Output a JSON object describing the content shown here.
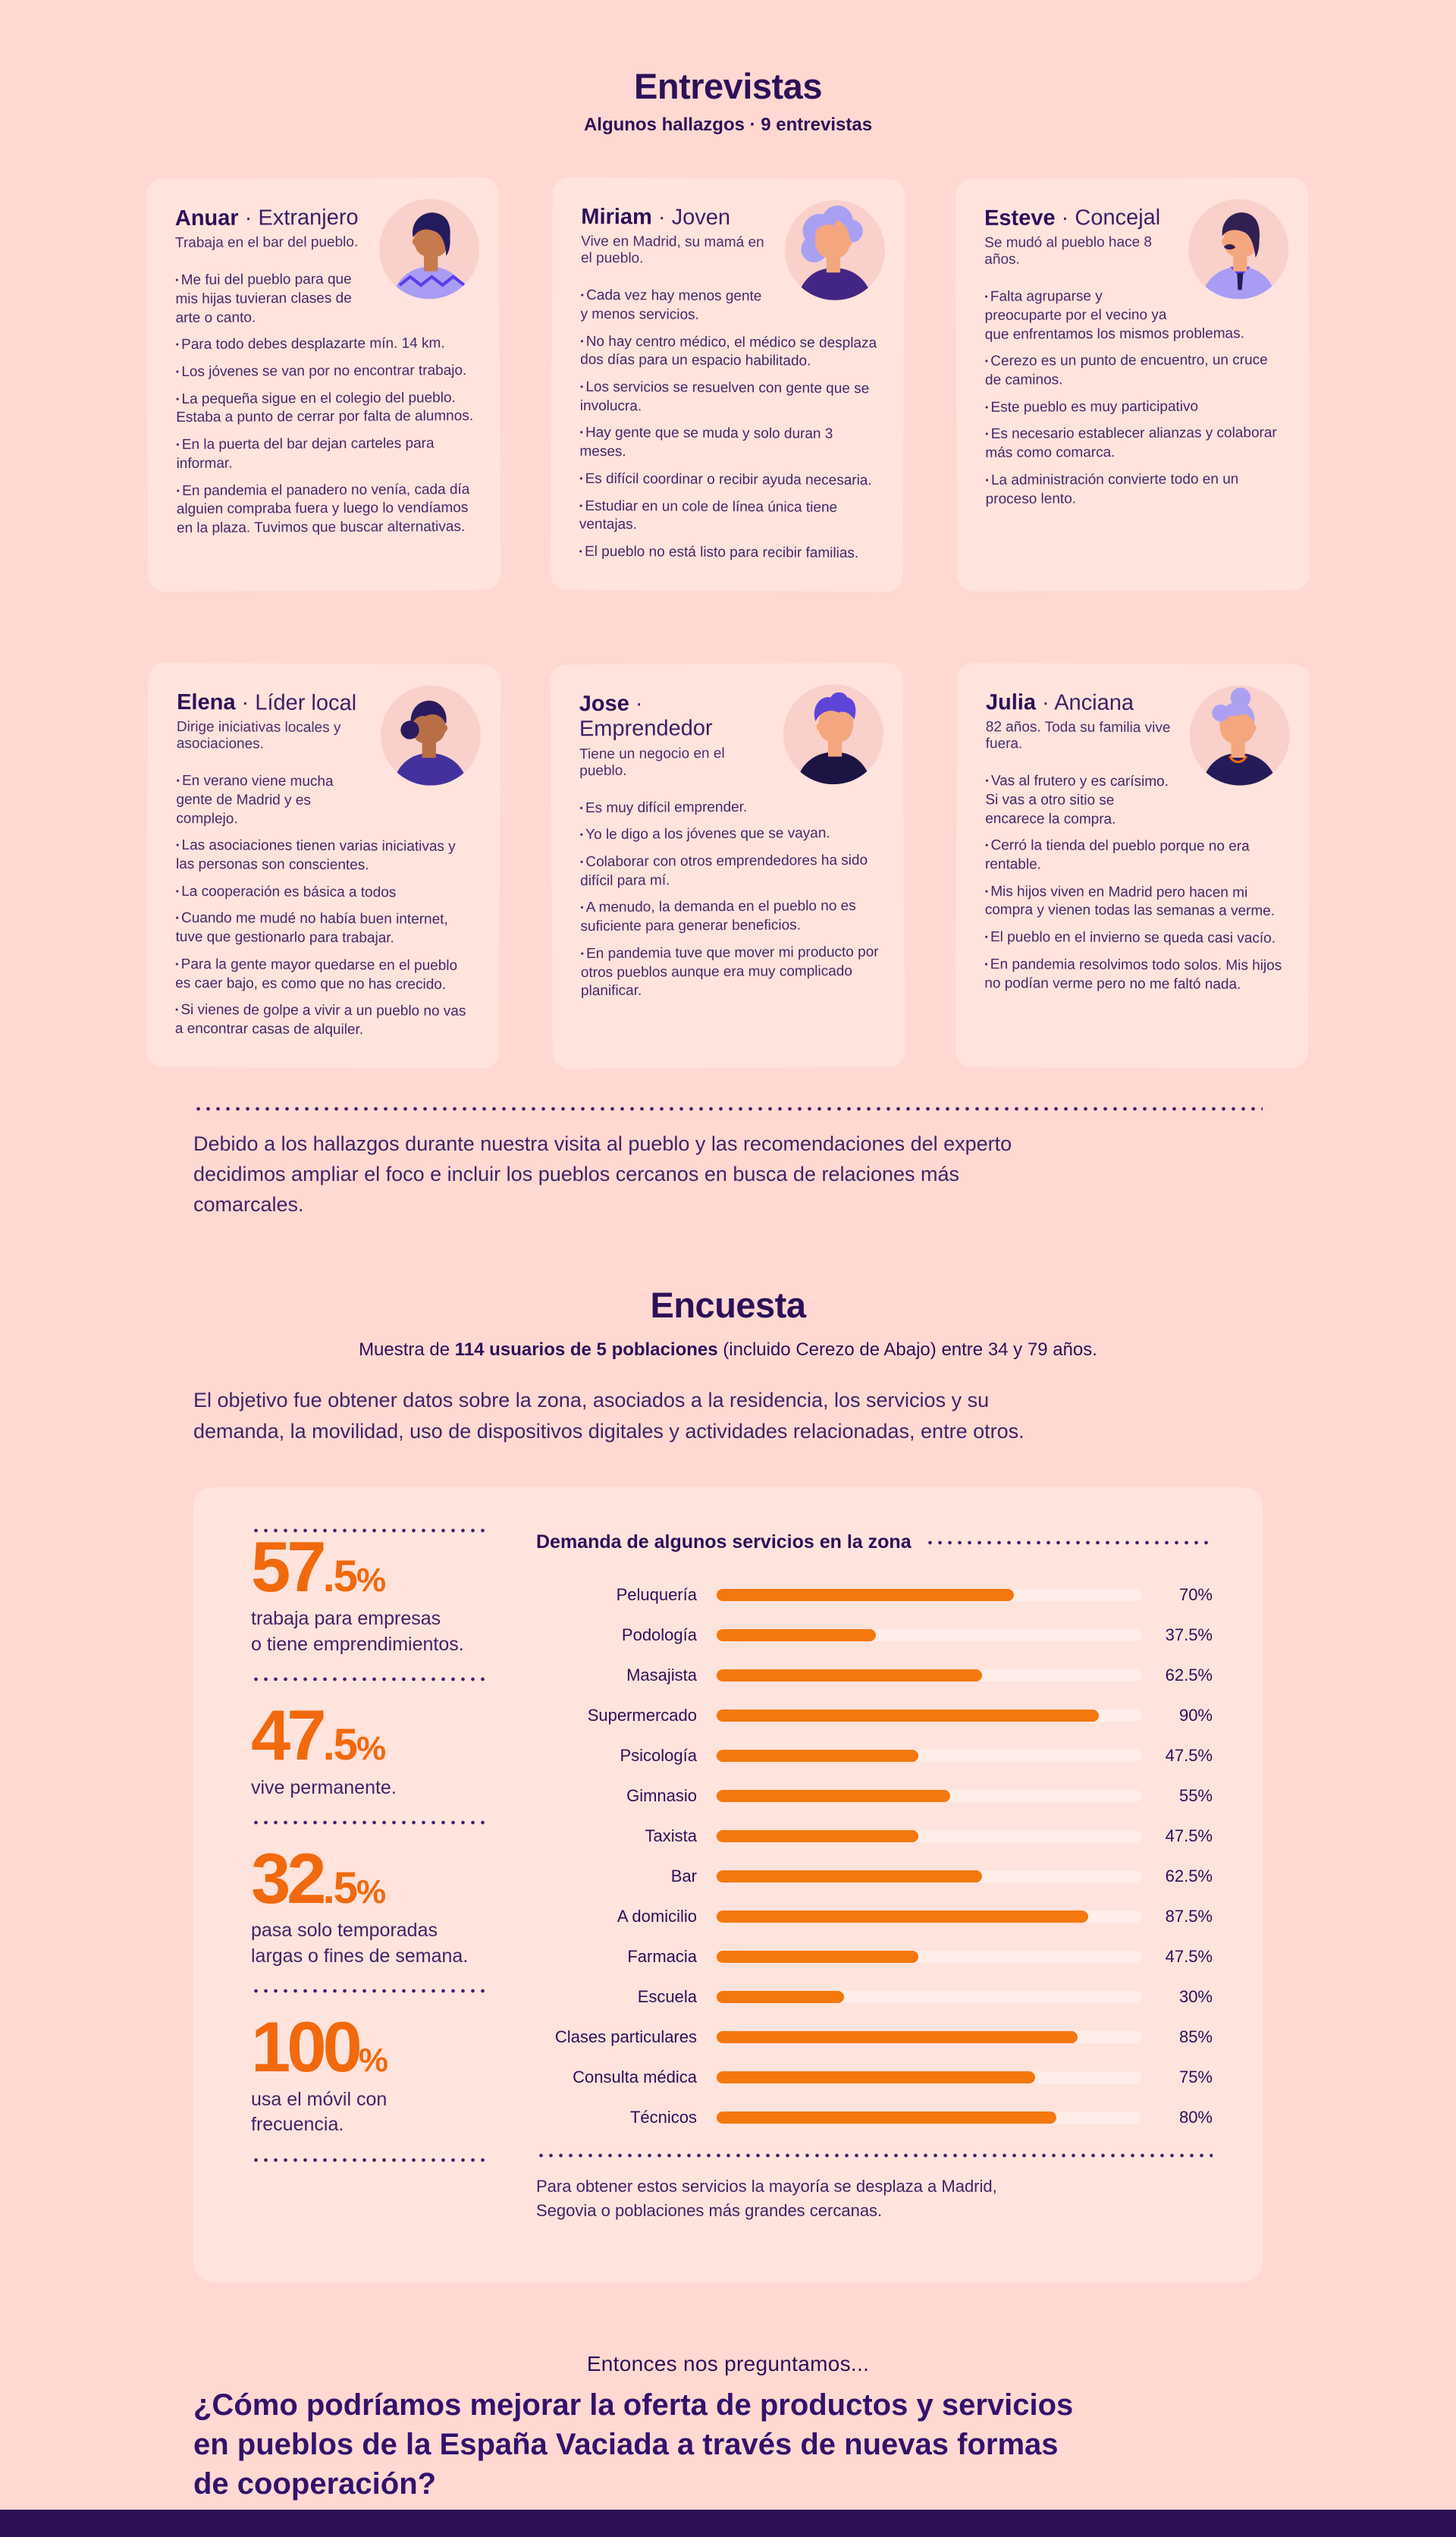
{
  "page": {
    "background": "#FFD8D2",
    "panel_background": "#FFE3DD",
    "card_background": "#FFE3DD",
    "ink": "#2D1158",
    "body_purple": "#452969",
    "accent_orange": "#F2690D",
    "footer_color": "#2B1056"
  },
  "entrevistas": {
    "title": "Entrevistas",
    "subtitle": "Algunos hallazgos · 9 entrevistas",
    "sep": "·",
    "people": [
      {
        "name": "Anuar",
        "role": "Extranjero",
        "desc": "Trabaja en el bar del pueblo.",
        "bullets": [
          "Me fui del pueblo para que mis hijas tuvieran clases de arte o canto.",
          "Para todo debes desplazarte mín. 14 km.",
          "Los jóvenes se van por no encontrar trabajo.",
          "La pequeña sigue en el colegio del pueblo. Estaba a punto de cerrar por falta de alumnos.",
          "En la puerta del bar dejan carteles para informar.",
          "En pandemia el panadero no venía, cada día alguien compraba fuera y luego lo vendíamos en la plaza. Tuvimos que buscar alternativas."
        ],
        "avatar": {
          "bg": "#F9D0CA",
          "hair": "#241B5E",
          "skin": "#C67A4E",
          "shirt": "#A89CF5",
          "accent": "#5B3BEA"
        }
      },
      {
        "name": "Miriam",
        "role": "Joven",
        "desc": "Vive en Madrid, su mamá en el pueblo.",
        "bullets": [
          "Cada vez hay menos gente y menos servicios.",
          "No hay centro médico, el médico se desplaza dos días para un espacio habilitado.",
          "Los servicios se resuelven con gente que se involucra.",
          "Hay gente que se muda y solo duran 3 meses.",
          "Es difícil coordinar o recibir ayuda necesaria.",
          "Estudiar en un cole de línea única tiene ventajas.",
          "El pueblo no está listo para recibir familias."
        ],
        "avatar": {
          "bg": "#F9D0CA",
          "hair": "#A99FF3",
          "skin": "#F4A77E",
          "shirt": "#432585",
          "accent": "#7C5CF0"
        }
      },
      {
        "name": "Esteve",
        "role": "Concejal",
        "desc": "Se mudó al pueblo hace 8 años.",
        "bullets": [
          "Falta agruparse y preocuparte por el vecino ya que enfrentamos los mismos problemas.",
          "Cerezo es un punto de encuentro, un cruce de caminos.",
          "Este pueblo es muy participativo",
          "Es necesario establecer alianzas y colaborar más como comarca.",
          "La administración convierte todo en un proceso lento."
        ],
        "avatar": {
          "bg": "#F9D0CA",
          "hair": "#312051",
          "skin": "#F4A77E",
          "shirt": "#A89CF5",
          "tie": "#241A56",
          "collar": "#5B46F5"
        }
      },
      {
        "name": "Elena",
        "role": "Líder local",
        "desc": "Dirige iniciativas locales y asociaciones.",
        "bullets": [
          "En verano viene mucha gente de Madrid y es complejo.",
          "Las asociaciones tienen varias iniciativas y las personas son conscientes.",
          "La cooperación es básica a todos",
          "Cuando me mudé no había buen internet, tuve que gestionarlo para trabajar.",
          "Para la gente mayor quedarse en el pueblo es caer bajo, es como que no has crecido.",
          "Si vienes de golpe a vivir a un pueblo no vas a encontrar casas de alquiler."
        ],
        "avatar": {
          "bg": "#F9D0CA",
          "hair": "#2A1B5E",
          "skin": "#B96F46",
          "shirt": "#44319E",
          "accent": "#2A1B5E"
        }
      },
      {
        "name": "Jose",
        "role": "Emprendedor",
        "desc": "Tiene un negocio en el pueblo.",
        "bullets": [
          "Es muy difícil emprender.",
          "Yo le digo a los jóvenes que se vayan.",
          "Colaborar con otros emprendedores ha sido difícil para mí.",
          "A menudo, la demanda en el pueblo no es suficiente para generar beneficios.",
          "En pandemia tuve que mover mi producto por otros pueblos aunque era muy complicado planificar."
        ],
        "avatar": {
          "bg": "#F9D0CA",
          "hair": "#5D45D9",
          "skin": "#F4A77E",
          "shirt": "#1C1443",
          "accent": "#5D45D9"
        }
      },
      {
        "name": "Julia",
        "role": "Anciana",
        "desc": "82 años. Toda su familia vive fuera.",
        "bullets": [
          "Vas al frutero y es carísimo. Si vas a otro sitio se encarece la compra.",
          "Cerró la tienda del pueblo porque no era rentable.",
          "Mis hijos viven en Madrid pero hacen mi compra y vienen todas las semanas a verme.",
          "El pueblo en el invierno se queda casi vacío.",
          "En pandemia resolvimos todo solos. Mis hijos no podían verme pero no me faltó nada."
        ],
        "avatar": {
          "bg": "#F9D0CA",
          "hair": "#ABA0F2",
          "skin": "#F4A77E",
          "shirt": "#241B58",
          "accent": "#F2690D"
        }
      }
    ],
    "note": "Debido a los hallazgos durante nuestra visita al pueblo y las recomendaciones del experto\ndecidimos ampliar el foco e incluir los pueblos cercanos en busca de relaciones más\ncomarcales."
  },
  "encuesta": {
    "title": "Encuesta",
    "sample_prefix": "Muestra de ",
    "sample_bold": "114 usuarios de 5 poblaciones",
    "sample_suffix": " (incluido Cerezo de Abajo) entre 34 y 79 años.",
    "objective": "El objetivo fue obtener datos sobre la zona, asociados a la residencia, los servicios y su\ndemanda, la movilidad, uso de dispositivos digitales y actividades relacionadas, entre otros.",
    "stats": [
      {
        "big": "57",
        "small": ".5",
        "pct": "%",
        "label": "trabaja para empresas\no tiene emprendimientos."
      },
      {
        "big": "47",
        "small": ".5",
        "pct": "%",
        "label": "vive permanente."
      },
      {
        "big": "32",
        "small": ".5",
        "pct": "%",
        "label": "pasa solo temporadas\nlargas o fines de semana."
      },
      {
        "big": "100",
        "small": "",
        "pct": "%",
        "label": "usa el móvil con\nfrecuencia."
      }
    ],
    "chart_note": "Para obtener estos servicios la mayoría se desplaza a Madrid,\nSegovia o poblaciones más grandes cercanas."
  },
  "chart_data": {
    "type": "bar",
    "orientation": "horizontal",
    "title": "Demanda de algunos servicios en la zona",
    "xlim": [
      0,
      100
    ],
    "unit": "%",
    "grid": false,
    "bar_color": "#F5780F",
    "track_color": "#FEEEE9",
    "categories": [
      "Peluquería",
      "Podología",
      "Masajista",
      "Supermercado",
      "Psicología",
      "Gimnasio",
      "Taxista",
      "Bar",
      "A domicilio",
      "Farmacia",
      "Escuela",
      "Clases particulares",
      "Consulta médica",
      "Técnicos"
    ],
    "values": [
      70,
      37.5,
      62.5,
      90,
      47.5,
      55,
      47.5,
      62.5,
      87.5,
      47.5,
      30,
      85,
      75,
      80
    ],
    "rows": [
      {
        "label": "Peluquería",
        "value": 70,
        "display": "70%"
      },
      {
        "label": "Podología",
        "value": 37.5,
        "display": "37.5%"
      },
      {
        "label": "Masajista",
        "value": 62.5,
        "display": "62.5%"
      },
      {
        "label": "Supermercado",
        "value": 90,
        "display": "90%"
      },
      {
        "label": "Psicología",
        "value": 47.5,
        "display": "47.5%"
      },
      {
        "label": "Gimnasio",
        "value": 55,
        "display": "55%"
      },
      {
        "label": "Taxista",
        "value": 47.5,
        "display": "47.5%"
      },
      {
        "label": "Bar",
        "value": 62.5,
        "display": "62.5%"
      },
      {
        "label": "A domicilio",
        "value": 87.5,
        "display": "87.5%"
      },
      {
        "label": "Farmacia",
        "value": 47.5,
        "display": "47.5%"
      },
      {
        "label": "Escuela",
        "value": 30,
        "display": "30%"
      },
      {
        "label": "Clases particulares",
        "value": 85,
        "display": "85%"
      },
      {
        "label": "Consulta médica",
        "value": 75,
        "display": "75%"
      },
      {
        "label": "Técnicos",
        "value": 80,
        "display": "80%"
      }
    ]
  },
  "conclusion": {
    "lead": "Entonces nos preguntamos...",
    "question": "¿Cómo podríamos mejorar la oferta de productos y servicios\nen pueblos de la España Vaciada a través de nuevas formas\nde cooperación?"
  }
}
